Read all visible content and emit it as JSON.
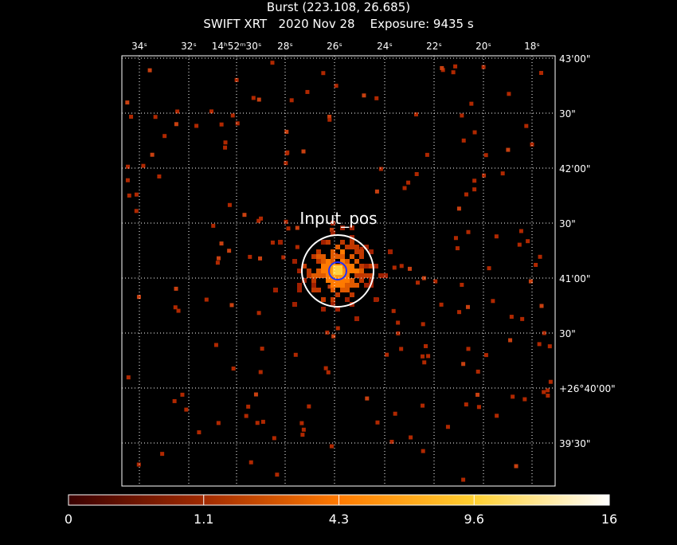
{
  "header": {
    "title": "Burst (223.108, 26.685)",
    "subtitle": "SWIFT XRT   2020 Nov 28    Exposure: 9435 s"
  },
  "ra_labels": [
    "34ˢ",
    "32ˢ",
    "14ʰ52ᵐ30ˢ",
    "28ˢ",
    "26ˢ",
    "24ˢ",
    "22ˢ",
    "20ˢ",
    "18ˢ"
  ],
  "dec_labels": [
    "43'00\"",
    "30\"",
    "42'00\"",
    "30\"",
    "41'00\"",
    "30\"",
    "+26°40'00\"",
    "39'30\""
  ],
  "annotation": "Input_pos",
  "colorbar": {
    "ticks": [
      0,
      1.1,
      4.3,
      9.6,
      16
    ]
  }
}
